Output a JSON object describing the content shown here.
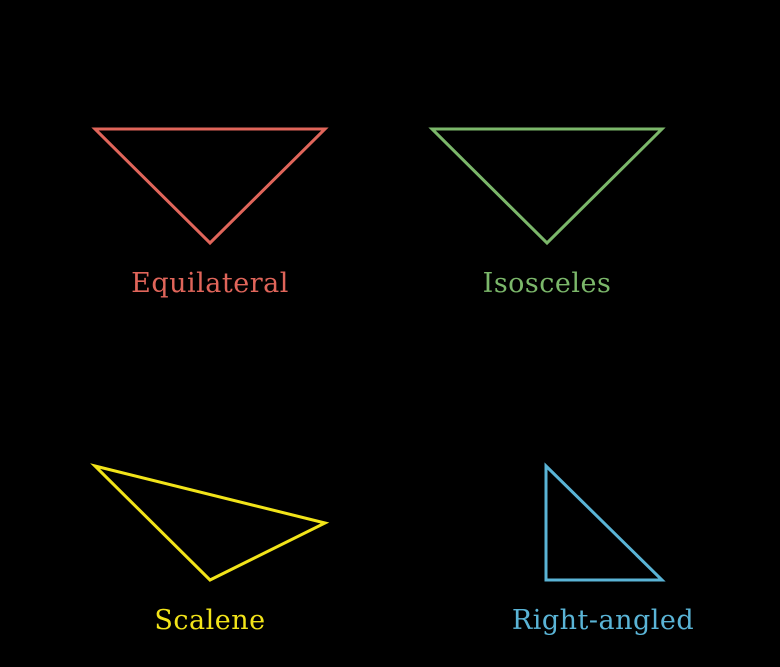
{
  "triangles": [
    {
      "id": "equilateral",
      "label": "Equilateral",
      "color": "#e0655a"
    },
    {
      "id": "isosceles",
      "label": "Isosceles",
      "color": "#7bb76a"
    },
    {
      "id": "scalene",
      "label": "Scalene",
      "color": "#f2e419"
    },
    {
      "id": "right-angled",
      "label": "Right-angled",
      "color": "#5ab4d6"
    }
  ]
}
